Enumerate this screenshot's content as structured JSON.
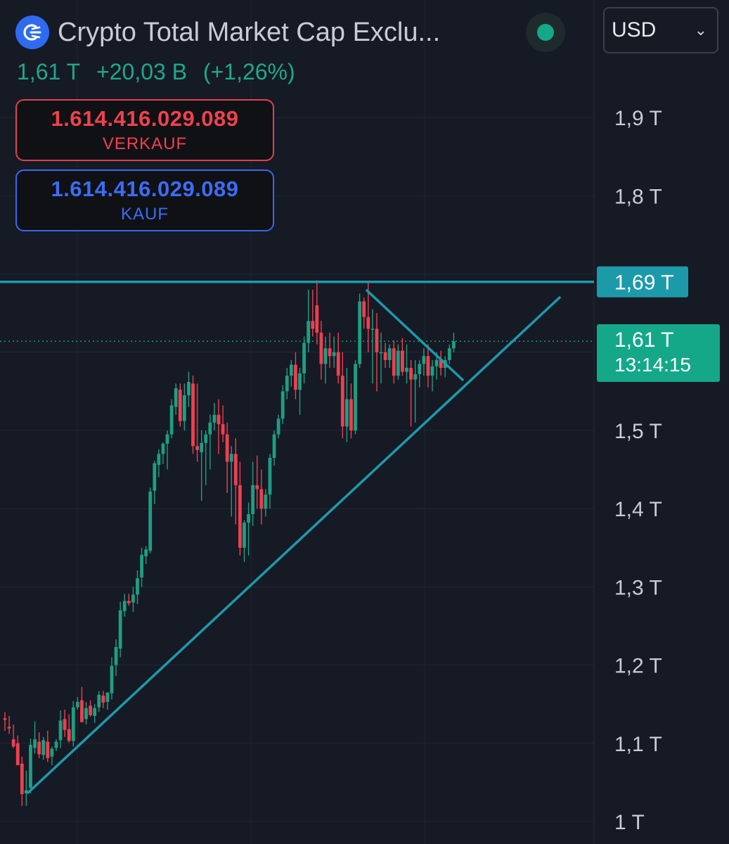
{
  "header": {
    "title": "Crypto Total Market Cap Exclu...",
    "logo_icon": "crypto-market-cap-logo-icon",
    "status_color": "#14a889",
    "currency": "USD"
  },
  "quote": {
    "last": "1,61 T",
    "change": "+20,03 B",
    "change_pct": "(+1,26%)"
  },
  "sell_box": {
    "value": "1.614.416.029.089",
    "label": "VERKAUF"
  },
  "buy_box": {
    "value": "1.614.416.029.089",
    "label": "KAUF"
  },
  "colors": {
    "up": "#1e9e82",
    "down": "#ef3f4f",
    "trendline": "#1d9aaa",
    "background": "#161a25",
    "grid": "#232734",
    "axis_text": "#c9ccd6",
    "last_price_badge": "#14a889",
    "resistance_badge": "#1d9aaa"
  },
  "chart_data": {
    "type": "candlestick",
    "y_unit": "T",
    "ylim": [
      0.99,
      1.97
    ],
    "y_ticks": [
      "1 T",
      "1,1 T",
      "1,2 T",
      "1,3 T",
      "1,4 T",
      "1,5 T",
      "1,6 T",
      "1,7 T",
      "1,8 T",
      "1,9 T"
    ],
    "y_tick_values": [
      1.0,
      1.1,
      1.2,
      1.3,
      1.4,
      1.5,
      1.6,
      1.7,
      1.8,
      1.9
    ],
    "hidden_tick_labels": [
      "1,6 T"
    ],
    "grid": true,
    "last_price": {
      "value": 1.614,
      "label": "1,61 T",
      "countdown": "13:14:15"
    },
    "resistance": {
      "value": 1.69,
      "label": "1,69 T"
    },
    "candles": [
      [
        1.132,
        1.14,
        1.116,
        1.13
      ],
      [
        1.121,
        1.135,
        1.112,
        1.119
      ],
      [
        1.105,
        1.124,
        1.094,
        1.096
      ],
      [
        1.1,
        1.11,
        1.072,
        1.072
      ],
      [
        1.074,
        1.083,
        1.02,
        1.035
      ],
      [
        1.036,
        1.065,
        1.02,
        1.04
      ],
      [
        1.043,
        1.106,
        1.036,
        1.098
      ],
      [
        1.094,
        1.128,
        1.087,
        1.105
      ],
      [
        1.102,
        1.114,
        1.081,
        1.086
      ],
      [
        1.085,
        1.108,
        1.079,
        1.104
      ],
      [
        1.102,
        1.116,
        1.076,
        1.081
      ],
      [
        1.083,
        1.096,
        1.072,
        1.093
      ],
      [
        1.094,
        1.105,
        1.09,
        1.102
      ],
      [
        1.104,
        1.142,
        1.094,
        1.129
      ],
      [
        1.131,
        1.143,
        1.108,
        1.117
      ],
      [
        1.118,
        1.137,
        1.101,
        1.103
      ],
      [
        1.103,
        1.154,
        1.096,
        1.146
      ],
      [
        1.146,
        1.159,
        1.143,
        1.153
      ],
      [
        1.155,
        1.172,
        1.127,
        1.127
      ],
      [
        1.131,
        1.153,
        1.124,
        1.145
      ],
      [
        1.148,
        1.155,
        1.134,
        1.136
      ],
      [
        1.135,
        1.15,
        1.126,
        1.145
      ],
      [
        1.146,
        1.167,
        1.14,
        1.162
      ],
      [
        1.161,
        1.167,
        1.145,
        1.152
      ],
      [
        1.153,
        1.165,
        1.143,
        1.165
      ],
      [
        1.164,
        1.21,
        1.156,
        1.199
      ],
      [
        1.2,
        1.233,
        1.186,
        1.223
      ],
      [
        1.221,
        1.281,
        1.21,
        1.27
      ],
      [
        1.269,
        1.291,
        1.262,
        1.282
      ],
      [
        1.282,
        1.291,
        1.276,
        1.279
      ],
      [
        1.28,
        1.3,
        1.268,
        1.29
      ],
      [
        1.29,
        1.321,
        1.278,
        1.311
      ],
      [
        1.312,
        1.35,
        1.3,
        1.341
      ],
      [
        1.339,
        1.352,
        1.329,
        1.348
      ],
      [
        1.346,
        1.427,
        1.343,
        1.422
      ],
      [
        1.423,
        1.461,
        1.406,
        1.458
      ],
      [
        1.456,
        1.476,
        1.44,
        1.47
      ],
      [
        1.47,
        1.485,
        1.457,
        1.483
      ],
      [
        1.483,
        1.5,
        1.45,
        1.495
      ],
      [
        1.495,
        1.54,
        1.49,
        1.532
      ],
      [
        1.53,
        1.56,
        1.52,
        1.554
      ],
      [
        1.552,
        1.56,
        1.505,
        1.512
      ],
      [
        1.512,
        1.56,
        1.5,
        1.545
      ],
      [
        1.545,
        1.575,
        1.53,
        1.562
      ],
      [
        1.56,
        1.57,
        1.47,
        1.48
      ],
      [
        1.48,
        1.56,
        1.46,
        1.475
      ],
      [
        1.472,
        1.5,
        1.41,
        1.484
      ],
      [
        1.484,
        1.5,
        1.43,
        1.495
      ],
      [
        1.495,
        1.52,
        1.45,
        1.51
      ],
      [
        1.51,
        1.535,
        1.5,
        1.52
      ],
      [
        1.52,
        1.54,
        1.47,
        1.508
      ],
      [
        1.508,
        1.532,
        1.485,
        1.495
      ],
      [
        1.495,
        1.51,
        1.42,
        1.46
      ],
      [
        1.46,
        1.48,
        1.39,
        1.47
      ],
      [
        1.47,
        1.49,
        1.38,
        1.43
      ],
      [
        1.43,
        1.46,
        1.34,
        1.35
      ],
      [
        1.35,
        1.385,
        1.332,
        1.382
      ],
      [
        1.382,
        1.408,
        1.34,
        1.393
      ],
      [
        1.393,
        1.46,
        1.378,
        1.43
      ],
      [
        1.43,
        1.468,
        1.4,
        1.425
      ],
      [
        1.425,
        1.45,
        1.38,
        1.4
      ],
      [
        1.4,
        1.425,
        1.39,
        1.418
      ],
      [
        1.418,
        1.47,
        1.4,
        1.465
      ],
      [
        1.465,
        1.5,
        1.455,
        1.495
      ],
      [
        1.495,
        1.52,
        1.49,
        1.515
      ],
      [
        1.515,
        1.558,
        1.508,
        1.55
      ],
      [
        1.55,
        1.58,
        1.54,
        1.57
      ],
      [
        1.57,
        1.59,
        1.556,
        1.584
      ],
      [
        1.584,
        1.6,
        1.54,
        1.552
      ],
      [
        1.552,
        1.58,
        1.52,
        1.573
      ],
      [
        1.573,
        1.62,
        1.56,
        1.612
      ],
      [
        1.612,
        1.68,
        1.6,
        1.64
      ],
      [
        1.64,
        1.68,
        1.62,
        1.63
      ],
      [
        1.66,
        1.692,
        1.61,
        1.625
      ],
      [
        1.625,
        1.64,
        1.565,
        1.585
      ],
      [
        1.585,
        1.62,
        1.56,
        1.605
      ],
      [
        1.605,
        1.625,
        1.58,
        1.595
      ],
      [
        1.595,
        1.62,
        1.58,
        1.6
      ],
      [
        1.6,
        1.625,
        1.56,
        1.57
      ],
      [
        1.57,
        1.6,
        1.49,
        1.505
      ],
      [
        1.505,
        1.58,
        1.485,
        1.54
      ],
      [
        1.54,
        1.56,
        1.49,
        1.5
      ],
      [
        1.5,
        1.59,
        1.495,
        1.585
      ],
      [
        1.585,
        1.675,
        1.58,
        1.665
      ],
      [
        1.665,
        1.67,
        1.63,
        1.645
      ],
      [
        1.645,
        1.69,
        1.6,
        1.63
      ],
      [
        1.63,
        1.655,
        1.56,
        1.63
      ],
      [
        1.63,
        1.65,
        1.55,
        1.6
      ],
      [
        1.6,
        1.625,
        1.56,
        1.6
      ],
      [
        1.6,
        1.612,
        1.58,
        1.59
      ],
      [
        1.59,
        1.61,
        1.58,
        1.605
      ],
      [
        1.605,
        1.615,
        1.56,
        1.57
      ],
      [
        1.57,
        1.61,
        1.565,
        1.602
      ],
      [
        1.602,
        1.618,
        1.57,
        1.575
      ],
      [
        1.575,
        1.61,
        1.56,
        1.58
      ],
      [
        1.58,
        1.59,
        1.505,
        1.565
      ],
      [
        1.565,
        1.59,
        1.51,
        1.572
      ],
      [
        1.572,
        1.59,
        1.555,
        1.585
      ],
      [
        1.585,
        1.605,
        1.57,
        1.595
      ],
      [
        1.595,
        1.61,
        1.555,
        1.57
      ],
      [
        1.57,
        1.59,
        1.55,
        1.582
      ],
      [
        1.582,
        1.6,
        1.565,
        1.59
      ],
      [
        1.59,
        1.602,
        1.57,
        1.58
      ],
      [
        1.58,
        1.595,
        1.568,
        1.59
      ],
      [
        1.59,
        1.61,
        1.585,
        1.605
      ],
      [
        1.605,
        1.625,
        1.6,
        1.614
      ]
    ]
  }
}
